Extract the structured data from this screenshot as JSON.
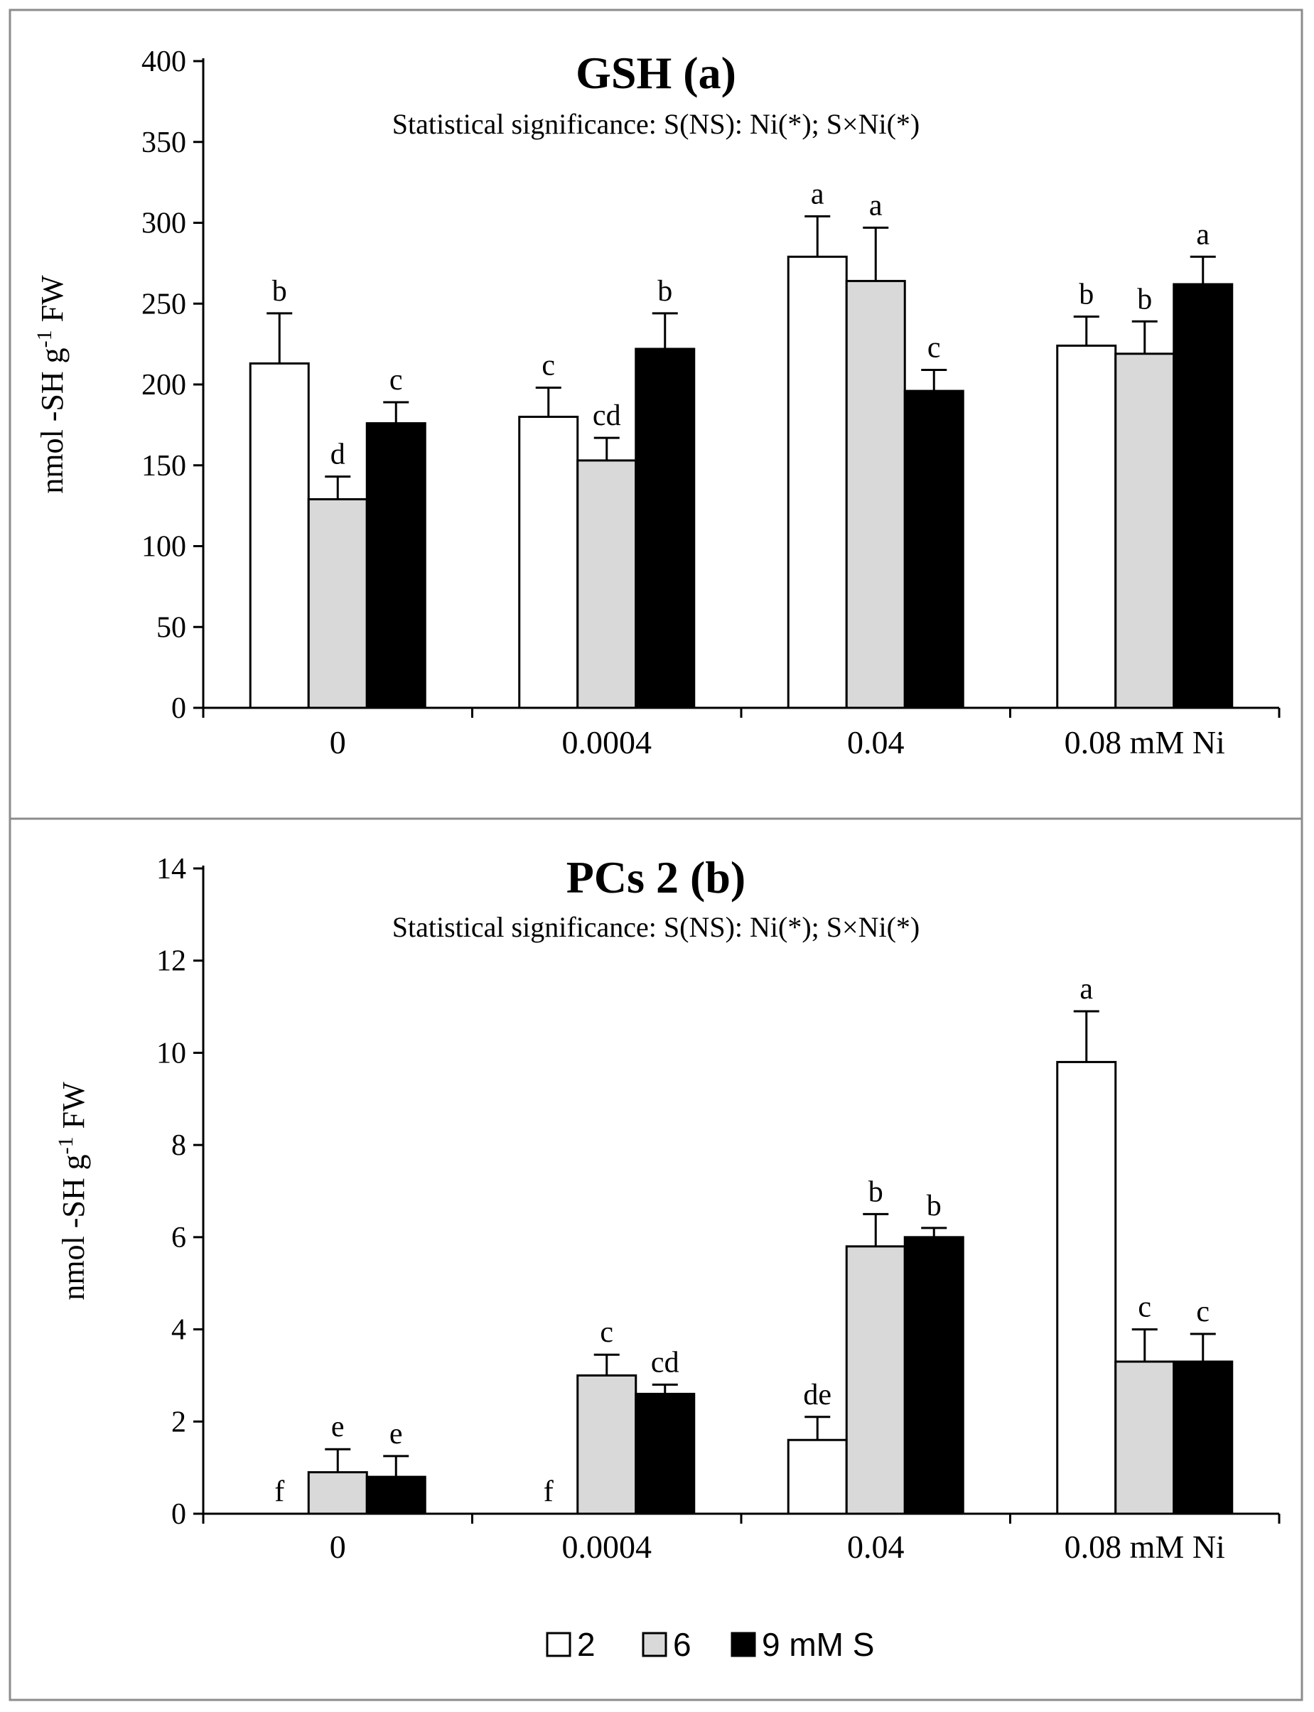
{
  "chart_data": [
    {
      "type": "bar",
      "title": "GSH (a)",
      "subtitle": "Statistical significance: S(NS): Ni(*); S×Ni(*)",
      "ylabel": "nmol -SH g",
      "ylabel_sup": "-1",
      "ylabel_tail": " FW",
      "xlabel": "",
      "ylim": [
        0,
        400
      ],
      "yticks": [
        0,
        50,
        100,
        150,
        200,
        250,
        300,
        350,
        400
      ],
      "categories": [
        "0",
        "0.0004",
        "0.04",
        "0.08 mM Ni"
      ],
      "series": [
        {
          "name": "2",
          "color": "#ffffff",
          "values": [
            213,
            180,
            279,
            224
          ],
          "errors": [
            31,
            18,
            25,
            18
          ],
          "letters": [
            "b",
            "c",
            "a",
            "b"
          ]
        },
        {
          "name": "6",
          "color": "#d9d9d9",
          "values": [
            129,
            153,
            264,
            219
          ],
          "errors": [
            14,
            14,
            33,
            20
          ],
          "letters": [
            "d",
            "cd",
            "a",
            "b"
          ]
        },
        {
          "name": "9 mM S",
          "color": "#000000",
          "values": [
            176,
            222,
            196,
            262
          ],
          "errors": [
            13,
            22,
            13,
            17
          ],
          "letters": [
            "c",
            "b",
            "c",
            "a"
          ]
        }
      ]
    },
    {
      "type": "bar",
      "title": "PCs 2 (b)",
      "subtitle": "Statistical significance: S(NS): Ni(*); S×Ni(*)",
      "ylabel": "nmol -SH g",
      "ylabel_sup": "-1",
      "ylabel_tail": " FW",
      "xlabel": "",
      "ylim": [
        0,
        14
      ],
      "yticks": [
        0,
        2,
        4,
        6,
        8,
        10,
        12,
        14
      ],
      "categories": [
        "0",
        "0.0004",
        "0.04",
        "0.08 mM Ni"
      ],
      "series": [
        {
          "name": "2",
          "color": "#ffffff",
          "values": [
            0,
            0,
            1.6,
            9.8
          ],
          "errors": [
            0,
            0,
            0.5,
            1.1
          ],
          "letters": [
            "f",
            "f",
            "de",
            "a"
          ]
        },
        {
          "name": "6",
          "color": "#d9d9d9",
          "values": [
            0.9,
            3.0,
            5.8,
            3.3
          ],
          "errors": [
            0.5,
            0.45,
            0.7,
            0.7
          ],
          "letters": [
            "e",
            "c",
            "b",
            "c"
          ]
        },
        {
          "name": "9 mM S",
          "color": "#000000",
          "values": [
            0.8,
            2.6,
            6.0,
            3.3
          ],
          "errors": [
            0.45,
            0.2,
            0.2,
            0.6
          ],
          "letters": [
            "e",
            "cd",
            "b",
            "c"
          ]
        }
      ]
    }
  ],
  "legend": {
    "items": [
      {
        "label": "2",
        "color": "#ffffff"
      },
      {
        "label": "6",
        "color": "#d9d9d9"
      },
      {
        "label": "9 mM S",
        "color": "#000000"
      }
    ]
  }
}
